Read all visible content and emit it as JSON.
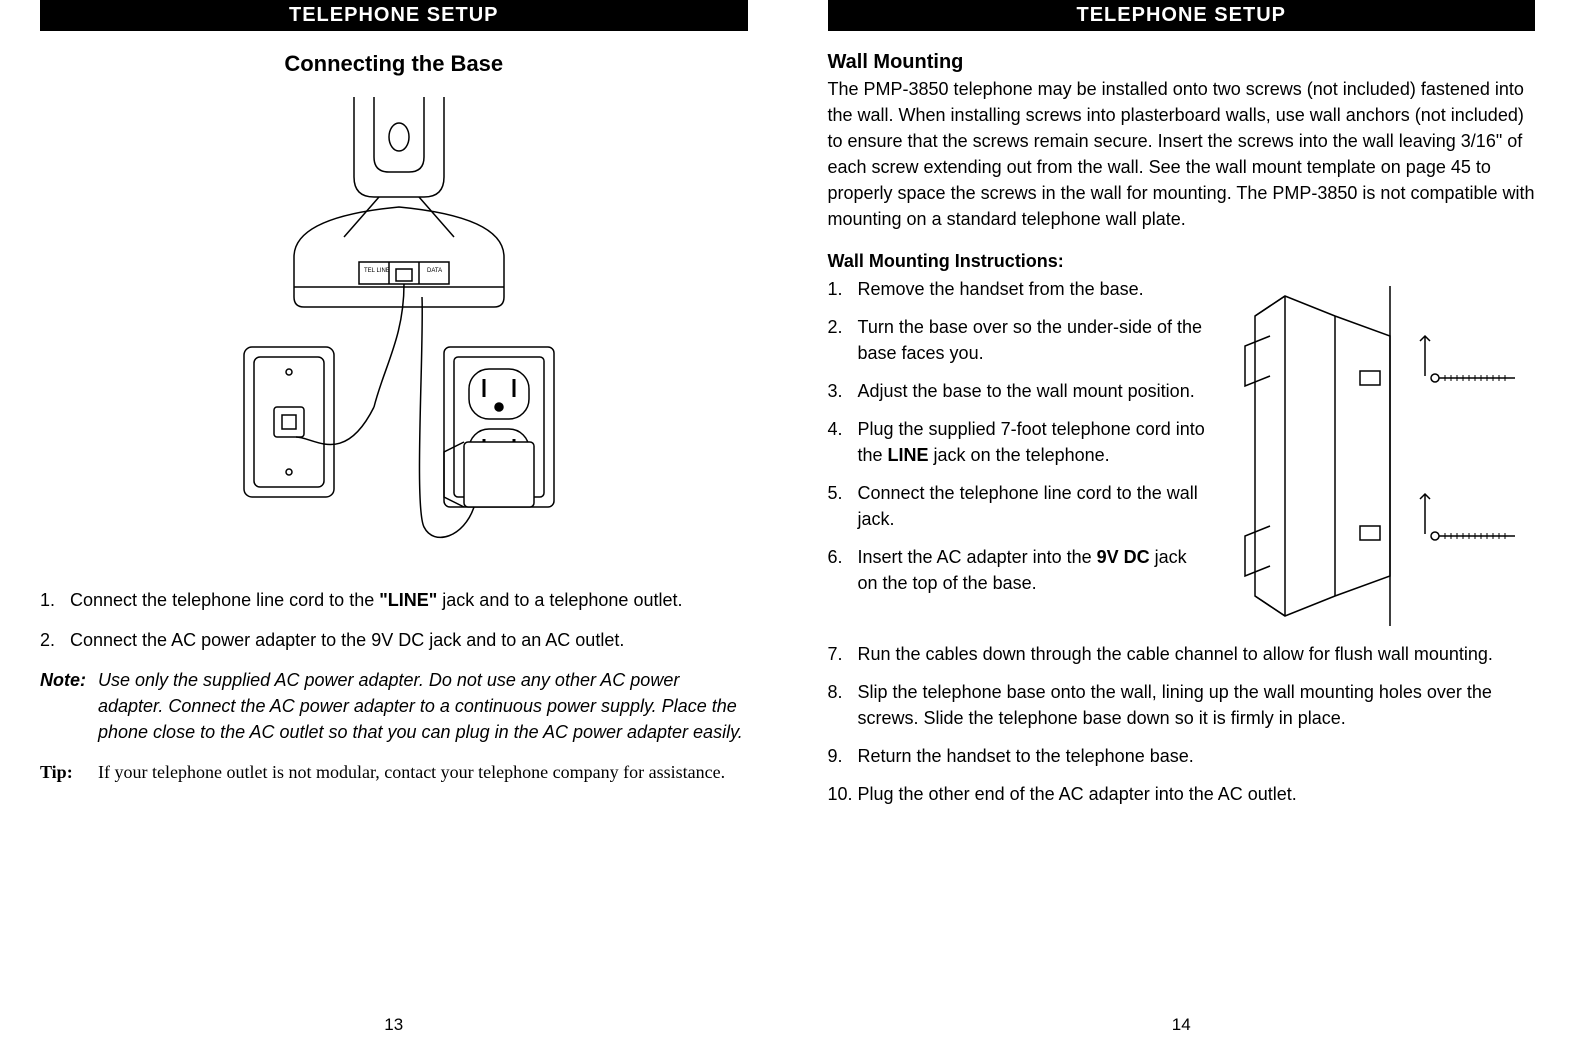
{
  "left": {
    "header": "TELEPHONE SETUP",
    "subtitle": "Connecting the Base",
    "steps": [
      {
        "num": "1.",
        "html": "Connect the telephone line cord to the <b>\"LINE\"</b> jack and to a telephone outlet."
      },
      {
        "num": "2.",
        "html": "Connect the AC power adapter to the 9V DC jack and to an AC outlet."
      }
    ],
    "note_label": "Note:",
    "note_text": "Use only the supplied AC power adapter. Do not use any other AC power adapter. Connect the AC power adapter to a continuous power supply. Place the phone close to the AC outlet so that you can plug in the AC power adapter easily.",
    "tip_label": "Tip:",
    "tip_text": "If your telephone outlet is not modular, contact your telephone company for assistance.",
    "page_num": "13"
  },
  "right": {
    "header": "TELEPHONE SETUP",
    "section_heading": "Wall Mounting",
    "body_text": "The PMP-3850 telephone may be installed onto two screws (not included) fastened into the wall. When installing screws into plasterboard walls, use wall anchors (not included) to ensure that the screws remain secure. Insert the screws into the wall leaving 3/16\" of each screw extending out from the wall. See the wall mount template on page 45 to properly space the screws in the wall for mounting.  The PMP-3850 is not compatible with mounting on a standard telephone wall plate.",
    "instr_heading": "Wall Mounting Instructions:",
    "steps_top": [
      {
        "num": "1.",
        "html": "Remove the handset from the base."
      },
      {
        "num": "2.",
        "html": "Turn the base over so the under-side of the base faces you."
      },
      {
        "num": "3.",
        "html": "Adjust the base to the wall mount position."
      },
      {
        "num": "4.",
        "html": "Plug the supplied 7-foot telephone cord into the <b>LINE</b> jack on the telephone."
      },
      {
        "num": "5.",
        "html": "Connect the telephone line cord to the wall jack."
      },
      {
        "num": "6.",
        "html": "Insert the AC adapter into the <b>9V DC</b> jack on the top of the base."
      }
    ],
    "steps_bottom": [
      {
        "num": "7.",
        "html": "Run the cables down through the cable channel to allow for flush wall mounting."
      },
      {
        "num": "8.",
        "html": "Slip the telephone base onto the wall, lining up the wall mounting holes over the screws. Slide the telephone base down so it is firmly in place."
      },
      {
        "num": "9.",
        "html": "Return the handset to the telephone base."
      },
      {
        "num": "10.",
        "html": "Plug the other end of the AC adapter into the AC outlet."
      }
    ],
    "page_num": "14"
  },
  "style": {
    "header_bg": "#000000",
    "header_fg": "#ffffff",
    "body_font_size": 18,
    "heading_font_size": 22,
    "line_color": "#000000",
    "page_bg": "#ffffff"
  }
}
